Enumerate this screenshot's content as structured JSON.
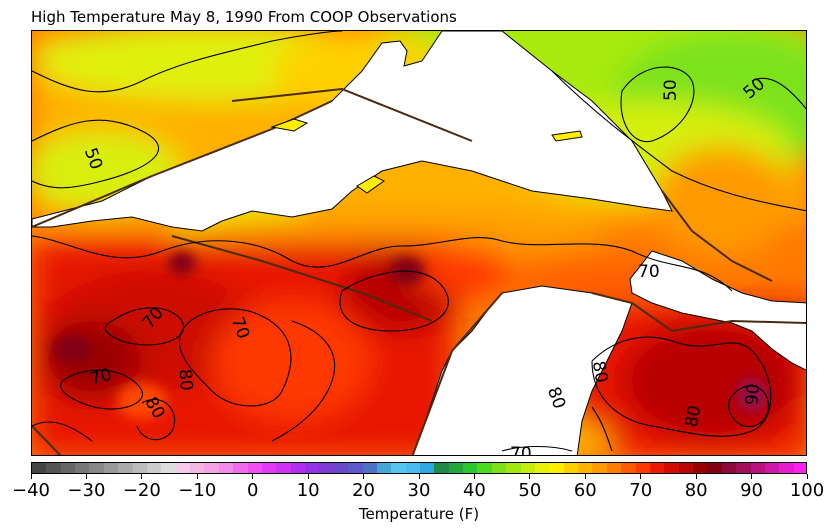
{
  "title": "High Temperature May 8, 1990 From COOP Observations",
  "colorbar": {
    "label": "Temperature (F)",
    "min": -40,
    "max": 100,
    "step": 2.5,
    "tick_values": [
      -40,
      -30,
      -20,
      -10,
      0,
      10,
      20,
      30,
      40,
      50,
      60,
      70,
      80,
      90,
      100
    ],
    "tick_labels": [
      "−40",
      "−30",
      "−20",
      "−10",
      "0",
      "10",
      "20",
      "30",
      "40",
      "50",
      "60",
      "70",
      "80",
      "90",
      "100"
    ],
    "colors": [
      "#444444",
      "#555555",
      "#666666",
      "#777777",
      "#888888",
      "#999999",
      "#aaaaaa",
      "#bbbbbb",
      "#cccccc",
      "#dddddd",
      "#f4cbe8",
      "#f2b8e4",
      "#f3a3e6",
      "#f28ce8",
      "#f06cec",
      "#f04ef1",
      "#e23af6",
      "#cc33f3",
      "#b02ef0",
      "#9434e4",
      "#7e3ad6",
      "#6a48cc",
      "#5b5ac8",
      "#4e72c7",
      "#48a6d6",
      "#56c6ee",
      "#4abbee",
      "#2fa7e0",
      "#1f8a48",
      "#22a83a",
      "#2cc72e",
      "#4bdc22",
      "#7be21a",
      "#a0e812",
      "#c6ee0c",
      "#e6f206",
      "#ffee00",
      "#ffd000",
      "#ffb400",
      "#ff9a00",
      "#ff7c00",
      "#ff5a00",
      "#ff3800",
      "#ee1a00",
      "#d40c00",
      "#b80600",
      "#9a0000",
      "#800012",
      "#8e0a3a",
      "#a00e5a",
      "#b81280",
      "#d016a8",
      "#e81ad0",
      "#ff1ef0"
    ]
  },
  "map": {
    "contour_labels": [
      "50",
      "50",
      "50",
      "70",
      "70",
      "70",
      "70",
      "70",
      "80",
      "80",
      "80",
      "80",
      "80",
      "90",
      "70"
    ]
  }
}
